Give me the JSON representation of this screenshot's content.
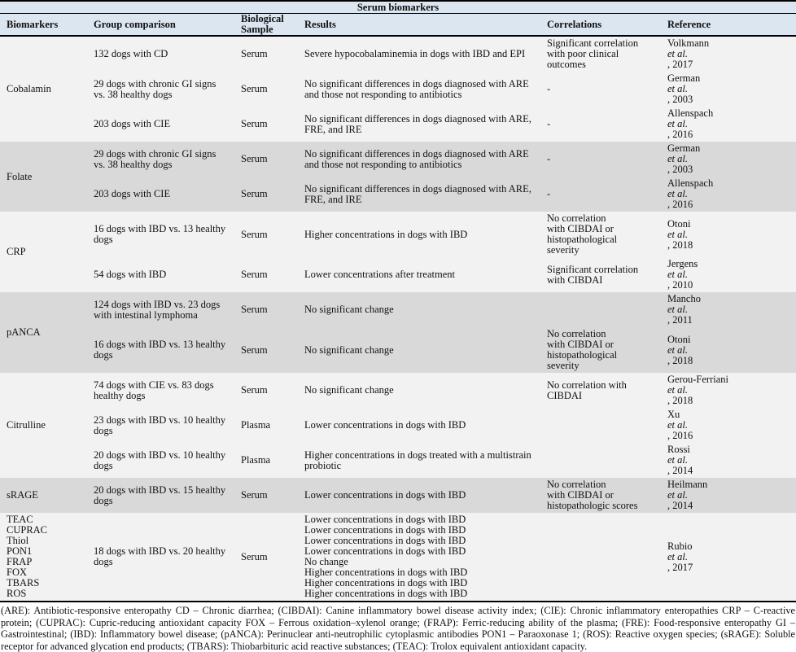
{
  "title": "Serum biomarkers",
  "columns": [
    "Biomarkers",
    "Group comparison",
    "Biological Sample",
    "Results",
    "Correlations",
    "Reference"
  ],
  "colors": {
    "header_bg": "#dce6f1",
    "band_light": "#f2f2f2",
    "band_dark": "#d9d9d9",
    "rule": "#000000"
  },
  "groups": [
    {
      "biomarker": "Cobalamin",
      "shade": "light",
      "rows": [
        {
          "group": "132 dogs with CD",
          "sample": "Serum",
          "results": "Severe hypocobalaminemia in dogs with IBD and EPI",
          "correlations": "Significant correlation\nwith poor clinical\noutcomes",
          "reference": "Volkmann et al., 2017"
        },
        {
          "group": "29 dogs with chronic GI signs vs. 38 healthy dogs",
          "sample": "Serum",
          "results": "No significant differences in dogs diagnosed with ARE and those not responding to antibiotics",
          "correlations": "-",
          "reference": "German et al., 2003"
        },
        {
          "group": "203 dogs with CIE",
          "sample": "Serum",
          "results": "No significant differences in dogs diagnosed with ARE, FRE, and IRE",
          "correlations": "-",
          "reference": "Allenspach et al., 2016"
        }
      ]
    },
    {
      "biomarker": "Folate",
      "shade": "dark",
      "rows": [
        {
          "group": "29 dogs with chronic GI signs vs. 38 healthy dogs",
          "sample": "Serum",
          "results": "No significant differences in dogs diagnosed with ARE and those not responding to antibiotics",
          "correlations": "-",
          "reference": "German et al., 2003"
        },
        {
          "group": "203 dogs with CIE",
          "sample": "Serum",
          "results": "No significant differences in dogs diagnosed with ARE, FRE, and IRE",
          "correlations": "-",
          "reference": "Allenspach et al., 2016"
        }
      ]
    },
    {
      "biomarker": "CRP",
      "shade": "light",
      "rows": [
        {
          "group": "16 dogs with IBD vs. 13 healthy dogs",
          "sample": "Serum",
          "results": "Higher concentrations in dogs with IBD",
          "correlations": "No correlation\nwith CIBDAI or\nhistopathological\nseverity",
          "reference": "Otoni et al. , 2018"
        },
        {
          "group": "54 dogs with IBD",
          "sample": "Serum",
          "results": "Lower concentrations after treatment",
          "correlations": "Significant correlation\nwith CIBDAI",
          "reference": "Jergens et al., 2010"
        }
      ]
    },
    {
      "biomarker": "pANCA",
      "shade": "dark",
      "rows": [
        {
          "group": "124 dogs with IBD vs. 23 dogs with intestinal lymphoma",
          "sample": "Serum",
          "results": "No significant change",
          "correlations": "",
          "reference": "Mancho et al., 2011"
        },
        {
          "group": "16 dogs with IBD vs. 13 healthy dogs",
          "sample": "Serum",
          "results": "No significant change",
          "correlations": "No correlation\nwith CIBDAI or\nhistopathological\nseverity",
          "reference": "Otoni et al. , 2018"
        }
      ]
    },
    {
      "biomarker": "Citrulline",
      "shade": "light",
      "rows": [
        {
          "group": "74 dogs with CIE vs. 83 dogs healthy dogs",
          "sample": "Serum",
          "results": "No significant change",
          "correlations": "No correlation with\nCIBDAI",
          "reference": "Gerou-Ferriani et al., 2018"
        },
        {
          "group": "23 dogs with IBD vs. 10 healthy dogs",
          "sample": "Plasma",
          "results": "Lower concentrations in dogs with IBD",
          "correlations": "",
          "reference": "Xu et al., 2016"
        },
        {
          "group": "20 dogs with IBD vs. 10 healthy dogs",
          "sample": "Plasma",
          "results": "Higher concentrations in dogs treated with a multistrain probiotic",
          "correlations": "",
          "reference": "Rossi et al., 2014"
        }
      ]
    },
    {
      "biomarker": "sRAGE",
      "shade": "dark",
      "rows": [
        {
          "group": "20 dogs with IBD vs. 15 healthy dogs",
          "sample": "Serum",
          "results": "Lower concentrations in dogs with IBD",
          "correlations": "No correlation\nwith CIBDAI or\nhistopathologic scores",
          "reference": "Heilmann\net al., 2014"
        }
      ]
    },
    {
      "biomarkers": [
        "TEAC",
        "CUPRAC",
        "Thiol",
        "PON1",
        "FRAP",
        "FOX",
        "TBARS",
        "ROS"
      ],
      "shade": "light",
      "rows": [
        {
          "group": "18 dogs with IBD vs. 20 healthy dogs",
          "sample": "Serum",
          "results": [
            "Lower concentrations in dogs with IBD",
            "Lower concentrations in dogs with IBD",
            "Lower concentrations in dogs with IBD",
            "Lower concentrations in dogs with IBD",
            "No change",
            "Higher concentrations in dogs with IBD",
            "Higher concentrations in dogs with IBD",
            "Higher concentrations in dogs with IBD"
          ],
          "correlations": "",
          "reference": "Rubio et al., 2017"
        }
      ]
    }
  ],
  "footnote": "(ARE): Antibiotic-responsive enteropathy CD – Chronic diarrhea; (CIBDAI): Canine inflammatory bowel disease activity index; (CIE): Chronic inflammatory enteropathies CRP – C-reactive protein; (CUPRAC): Cupric-reducing antioxidant capacity FOX – Ferrous oxidation–xylenol orange; (FRAP): Ferric-reducing ability of the plasma; (FRE): Food-responsive enteropathy GI – Gastrointestinal; (IBD): Inflammatory bowel disease; (pANCA): Perinuclear anti-neutrophilic cytoplasmic antibodies PON1 – Paraoxonase 1; (ROS): Reactive oxygen species; (sRAGE): Soluble receptor for advanced glycation end products; (TBARS): Thiobarbituric acid reactive substances; (TEAC): Trolox equivalent antioxidant capacity."
}
